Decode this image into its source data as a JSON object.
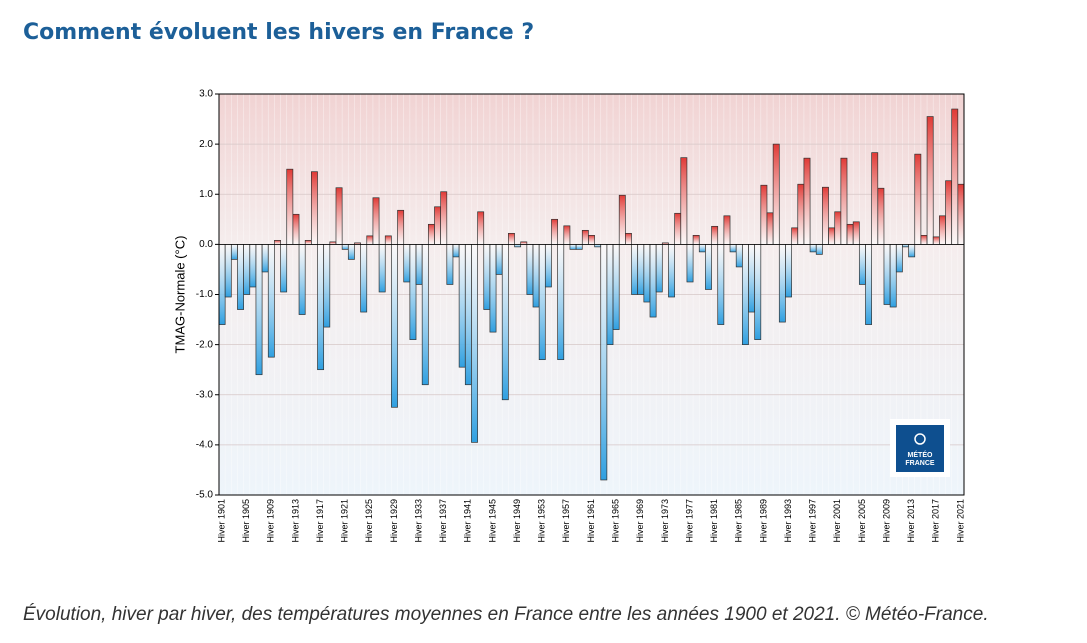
{
  "page_title": "Comment évoluent les hivers en France ?",
  "caption": "Évolution, hiver par hiver, des températures moyennes en France entre les années 1900 et 2021. © Météo-France.",
  "logo_lines": [
    "MÉTÉO",
    "FRANCE"
  ],
  "chart_data": {
    "type": "bar",
    "y_label": "TMAG-Normale (°C)",
    "positive_color": "#e03a36",
    "negative_color": "#2f9fe0",
    "ylim": [
      -5,
      3
    ],
    "yticks": [
      {
        "value": 3,
        "label": "3.0"
      },
      {
        "value": 2,
        "label": "2.0"
      },
      {
        "value": 1,
        "label": "1.0"
      },
      {
        "value": 0,
        "label": "0.0"
      },
      {
        "value": -1,
        "label": "-1.0"
      },
      {
        "value": -2,
        "label": "-2.0"
      },
      {
        "value": -3,
        "label": "-3.0"
      },
      {
        "value": -4,
        "label": "-4.0"
      },
      {
        "value": -5,
        "label": "-5.0"
      }
    ],
    "grid": true,
    "categories": [
      "Hiver 1901",
      null,
      null,
      null,
      "Hiver 1905",
      null,
      null,
      null,
      "Hiver 1909",
      null,
      null,
      null,
      "Hiver 1913",
      null,
      null,
      null,
      "Hiver 1917",
      null,
      null,
      null,
      "Hiver 1921",
      null,
      null,
      null,
      "Hiver 1925",
      null,
      null,
      null,
      "Hiver 1929",
      null,
      null,
      null,
      "Hiver 1933",
      null,
      null,
      null,
      "Hiver 1937",
      null,
      null,
      null,
      "Hiver 1941",
      null,
      null,
      null,
      "Hiver 1945",
      null,
      null,
      null,
      "Hiver 1949",
      null,
      null,
      null,
      "Hiver 1953",
      null,
      null,
      null,
      "Hiver 1957",
      null,
      null,
      null,
      "Hiver 1961",
      null,
      null,
      null,
      "Hiver 1965",
      null,
      null,
      null,
      "Hiver 1969",
      null,
      null,
      null,
      "Hiver 1973",
      null,
      null,
      null,
      "Hiver 1977",
      null,
      null,
      null,
      "Hiver 1981",
      null,
      null,
      null,
      "Hiver 1985",
      null,
      null,
      null,
      "Hiver 1989",
      null,
      null,
      null,
      "Hiver 1993",
      null,
      null,
      null,
      "Hiver 1997",
      null,
      null,
      null,
      "Hiver 2001",
      null,
      null,
      null,
      "Hiver 2005",
      null,
      null,
      null,
      "Hiver 2009",
      null,
      null,
      null,
      "Hiver 2013",
      null,
      null,
      null,
      "Hiver 2017",
      null,
      null,
      null,
      "Hiver 2021"
    ],
    "values": [
      -1.6,
      -1.05,
      -0.3,
      -1.3,
      -1.0,
      -0.85,
      -2.6,
      -0.55,
      -2.25,
      0.08,
      -0.95,
      1.5,
      0.6,
      -1.4,
      0.08,
      1.45,
      -2.5,
      -1.65,
      0.05,
      1.13,
      -0.1,
      -0.3,
      0.03,
      -1.35,
      0.17,
      0.93,
      -0.95,
      0.17,
      -3.25,
      0.68,
      -0.75,
      -1.9,
      -0.8,
      -2.8,
      0.4,
      0.75,
      1.05,
      -0.8,
      -0.25,
      -2.45,
      -2.8,
      -3.95,
      0.65,
      -1.3,
      -1.75,
      -0.6,
      -3.1,
      0.22,
      -0.05,
      0.05,
      -1.0,
      -1.25,
      -2.3,
      -0.85,
      0.5,
      -2.3,
      0.37,
      -0.1,
      -0.1,
      0.28,
      0.18,
      -0.05,
      -4.7,
      -2.0,
      -1.7,
      0.98,
      0.22,
      -1.0,
      -1.0,
      -1.15,
      -1.45,
      -0.95,
      0.03,
      -1.05,
      0.62,
      1.73,
      -0.75,
      0.18,
      -0.15,
      -0.9,
      0.36,
      -1.6,
      0.57,
      -0.15,
      -0.45,
      -2.0,
      -1.35,
      -1.9,
      1.18,
      0.63,
      2.0,
      -1.55,
      -1.05,
      0.33,
      1.2,
      1.72,
      -0.15,
      -0.2,
      1.14,
      0.33,
      0.65,
      1.72,
      0.4,
      0.45,
      -0.8,
      -1.6,
      1.83,
      1.12,
      -1.2,
      -1.25,
      -0.55,
      -0.05,
      -0.25,
      1.8,
      0.18,
      2.55,
      0.15,
      0.57,
      1.27,
      2.7,
      1.2
    ]
  }
}
